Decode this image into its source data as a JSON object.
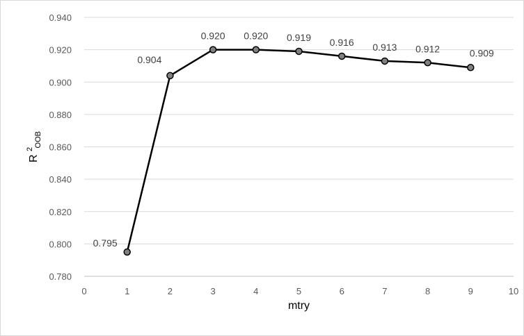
{
  "chart_data": {
    "type": "line",
    "x": [
      1,
      2,
      3,
      4,
      5,
      6,
      7,
      8,
      9
    ],
    "series": [
      {
        "values": [
          0.795,
          0.904,
          0.92,
          0.92,
          0.919,
          0.916,
          0.913,
          0.912,
          0.909
        ]
      }
    ],
    "data_labels": [
      "0.795",
      "0.904",
      "0.920",
      "0.920",
      "0.919",
      "0.916",
      "0.913",
      "0.912",
      "0.909"
    ],
    "xlabel": "mtry",
    "ylabel": {
      "base": "R",
      "superscript": "2",
      "subscript": "OOB"
    },
    "xlim": [
      0,
      10
    ],
    "ylim": [
      0.78,
      0.94
    ],
    "x_ticks": [
      "0",
      "1",
      "2",
      "3",
      "4",
      "5",
      "6",
      "7",
      "8",
      "9",
      "10"
    ],
    "y_ticks": [
      "0.780",
      "0.800",
      "0.820",
      "0.840",
      "0.860",
      "0.880",
      "0.900",
      "0.920",
      "0.940"
    ],
    "grid": "horizontal",
    "legend": "none",
    "colors": {
      "line": "#000000",
      "marker_fill": "#808080",
      "marker_stroke": "#000000",
      "gridline": "#d9d9d9",
      "axis": "#bfbfbf",
      "tick_text": "#595959",
      "label_text": "#404040"
    }
  }
}
